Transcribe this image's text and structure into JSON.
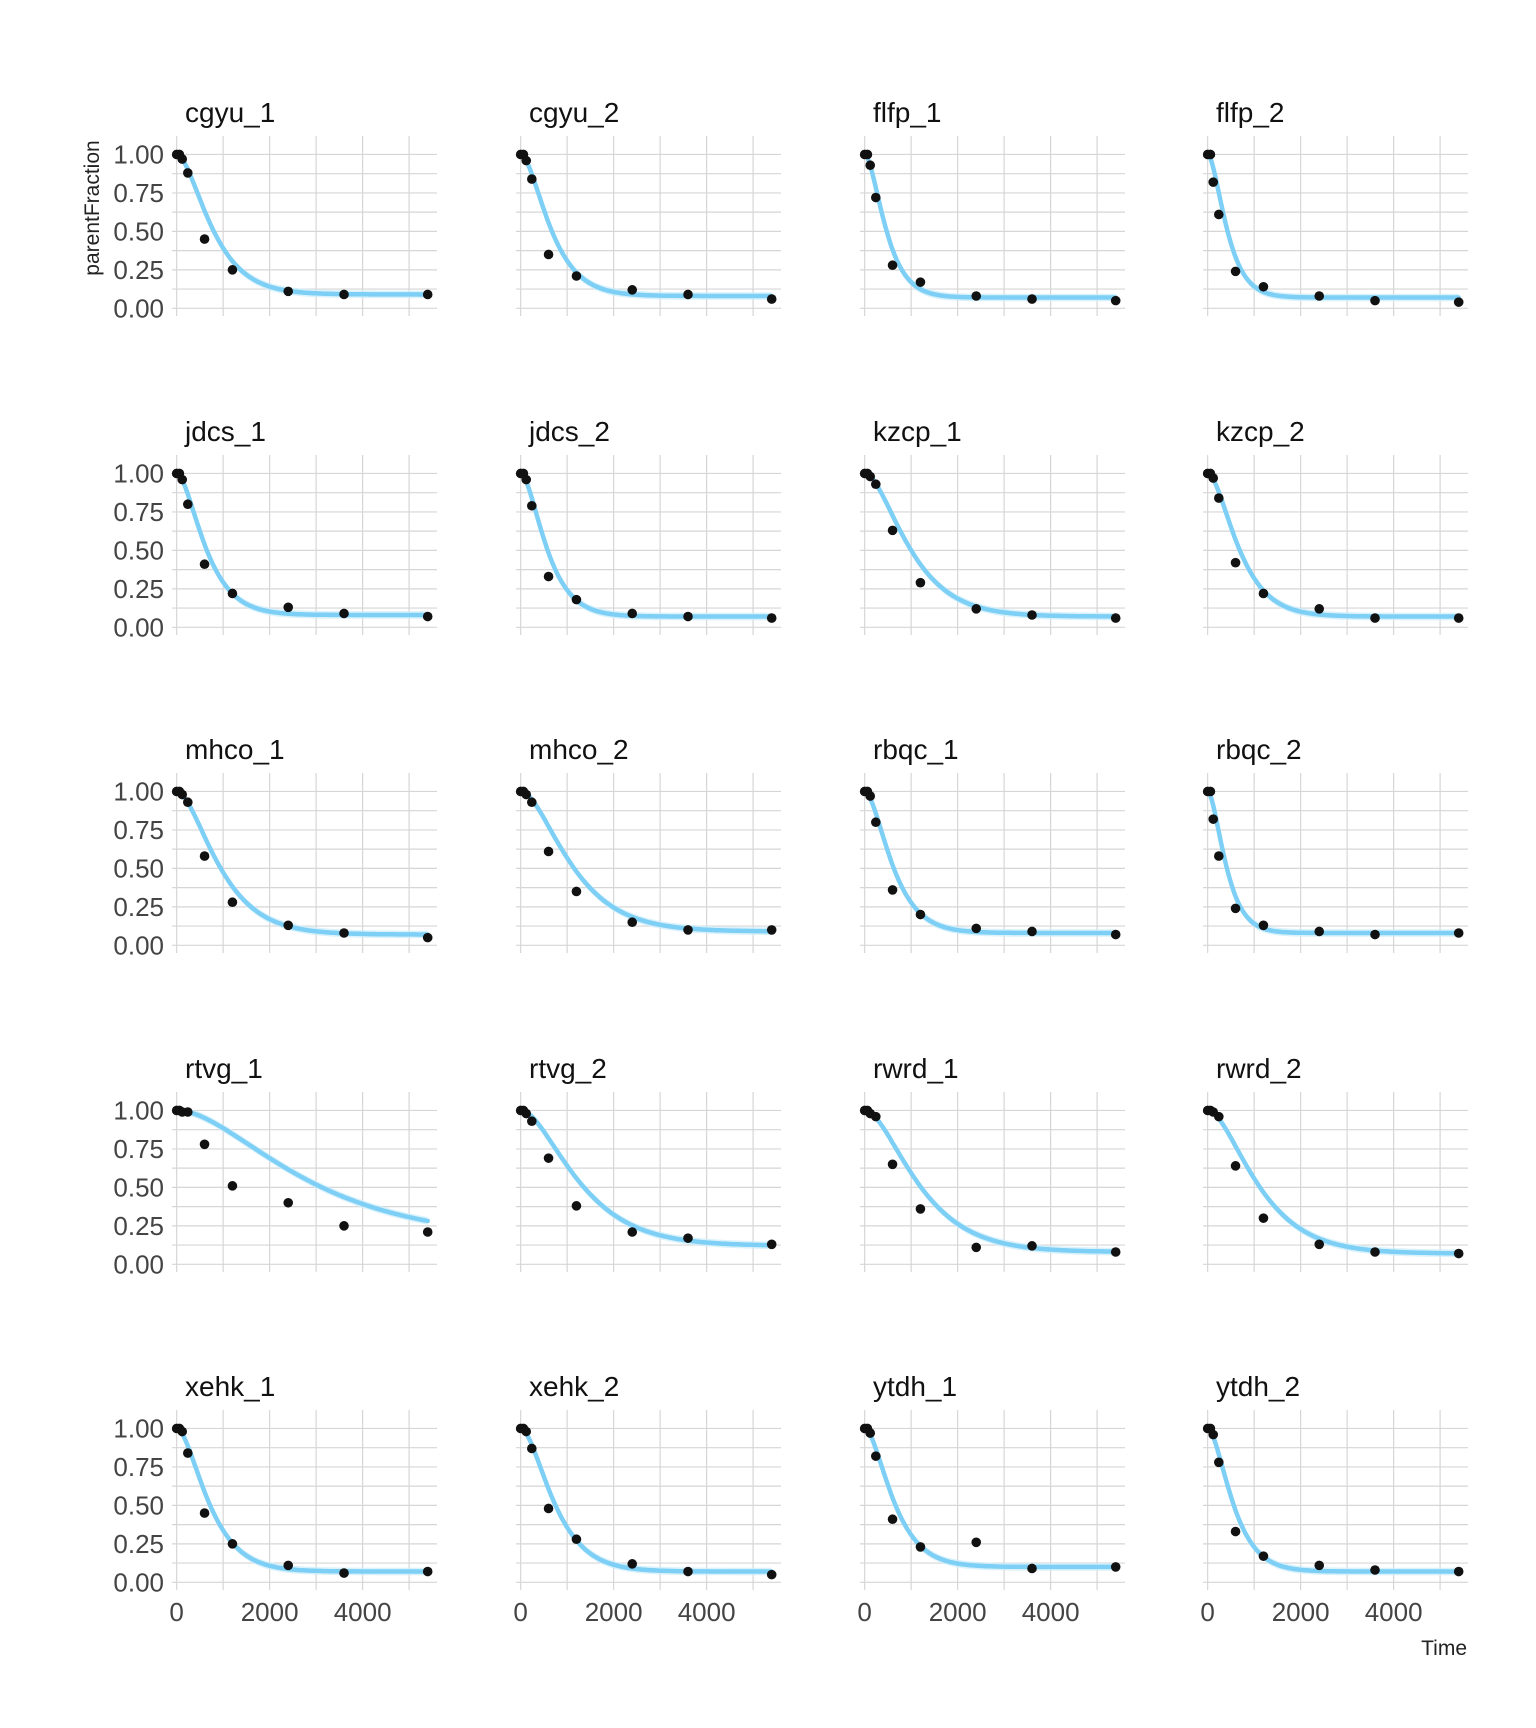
{
  "chart_data": {
    "type": "scatter",
    "layout": "facet grid, 5 rows x 4 columns",
    "xlabel": "Time",
    "ylabel": "parentFraction",
    "xlim": [
      -100,
      5600
    ],
    "ylim": [
      -0.05,
      1.12
    ],
    "xticks": [
      "0",
      "2000",
      "4000"
    ],
    "yticks": [
      "0.00",
      "0.25",
      "0.50",
      "0.75",
      "1.00"
    ],
    "grid": true,
    "colors": {
      "points": "#111111",
      "fit_line": "#7dcff5",
      "fit_band": "#cdeefb",
      "grid": "#d6d6d6"
    },
    "panels": [
      {
        "title": "cgyu_1",
        "x": [
          0,
          60,
          120,
          240,
          600,
          1200,
          2400,
          3600,
          5400
        ],
        "y": [
          1.0,
          1.0,
          0.97,
          0.88,
          0.45,
          0.25,
          0.11,
          0.09,
          0.09
        ],
        "fit_k": 0.0023,
        "fit_plateau": 0.09
      },
      {
        "title": "cgyu_2",
        "x": [
          0,
          60,
          120,
          240,
          600,
          1200,
          2400,
          3600,
          5400
        ],
        "y": [
          1.0,
          1.0,
          0.96,
          0.84,
          0.35,
          0.21,
          0.12,
          0.09,
          0.06
        ],
        "fit_k": 0.0027,
        "fit_plateau": 0.08
      },
      {
        "title": "flfp_1",
        "x": [
          0,
          60,
          120,
          240,
          600,
          1200,
          2400,
          3600,
          5400
        ],
        "y": [
          1.0,
          1.0,
          0.93,
          0.72,
          0.28,
          0.17,
          0.08,
          0.06,
          0.05
        ],
        "fit_k": 0.0038,
        "fit_plateau": 0.07
      },
      {
        "title": "flfp_2",
        "x": [
          0,
          60,
          120,
          240,
          600,
          1200,
          2400,
          3600,
          5400
        ],
        "y": [
          1.0,
          1.0,
          0.82,
          0.61,
          0.24,
          0.14,
          0.08,
          0.05,
          0.04
        ],
        "fit_k": 0.0042,
        "fit_plateau": 0.07
      },
      {
        "title": "jdcs_1",
        "x": [
          0,
          60,
          120,
          240,
          600,
          1200,
          2400,
          3600,
          5400
        ],
        "y": [
          1.0,
          1.0,
          0.96,
          0.8,
          0.41,
          0.22,
          0.13,
          0.09,
          0.07
        ],
        "fit_k": 0.0028,
        "fit_plateau": 0.08
      },
      {
        "title": "jdcs_2",
        "x": [
          0,
          60,
          120,
          240,
          600,
          1200,
          2400,
          3600,
          5400
        ],
        "y": [
          1.0,
          1.0,
          0.96,
          0.79,
          0.33,
          0.18,
          0.09,
          0.07,
          0.06
        ],
        "fit_k": 0.0031,
        "fit_plateau": 0.07
      },
      {
        "title": "kzcp_1",
        "x": [
          0,
          60,
          120,
          240,
          600,
          1200,
          2400,
          3600,
          5400
        ],
        "y": [
          1.0,
          1.0,
          0.98,
          0.93,
          0.63,
          0.29,
          0.12,
          0.08,
          0.06
        ],
        "fit_k": 0.0018,
        "fit_plateau": 0.07
      },
      {
        "title": "kzcp_2",
        "x": [
          0,
          60,
          120,
          240,
          600,
          1200,
          2400,
          3600,
          5400
        ],
        "y": [
          1.0,
          1.0,
          0.97,
          0.84,
          0.42,
          0.22,
          0.12,
          0.06,
          0.06
        ],
        "fit_k": 0.0026,
        "fit_plateau": 0.07
      },
      {
        "title": "mhco_1",
        "x": [
          0,
          60,
          120,
          240,
          600,
          1200,
          2400,
          3600,
          5400
        ],
        "y": [
          1.0,
          1.0,
          0.98,
          0.93,
          0.58,
          0.28,
          0.13,
          0.08,
          0.05
        ],
        "fit_k": 0.0019,
        "fit_plateau": 0.07
      },
      {
        "title": "mhco_2",
        "x": [
          0,
          60,
          120,
          240,
          600,
          1200,
          2400,
          3600,
          5400
        ],
        "y": [
          1.0,
          1.0,
          0.98,
          0.93,
          0.61,
          0.35,
          0.15,
          0.1,
          0.1
        ],
        "fit_k": 0.0016,
        "fit_plateau": 0.09
      },
      {
        "title": "rbqc_1",
        "x": [
          0,
          60,
          120,
          240,
          600,
          1200,
          2400,
          3600,
          5400
        ],
        "y": [
          1.0,
          1.0,
          0.97,
          0.8,
          0.36,
          0.2,
          0.11,
          0.09,
          0.07
        ],
        "fit_k": 0.0029,
        "fit_plateau": 0.08
      },
      {
        "title": "rbqc_2",
        "x": [
          0,
          60,
          120,
          240,
          600,
          1200,
          2400,
          3600,
          5400
        ],
        "y": [
          1.0,
          1.0,
          0.82,
          0.58,
          0.24,
          0.13,
          0.09,
          0.07,
          0.08
        ],
        "fit_k": 0.0044,
        "fit_plateau": 0.08
      },
      {
        "title": "rtvg_1",
        "x": [
          0,
          60,
          120,
          240,
          600,
          1200,
          2400,
          3600,
          5400
        ],
        "y": [
          1.0,
          1.0,
          0.99,
          0.99,
          0.78,
          0.51,
          0.4,
          0.25,
          0.21
        ],
        "fit_k": 0.00065,
        "fit_plateau": 0.17
      },
      {
        "title": "rtvg_2",
        "x": [
          0,
          60,
          120,
          240,
          600,
          1200,
          2400,
          3600,
          5400
        ],
        "y": [
          1.0,
          1.0,
          0.98,
          0.93,
          0.69,
          0.38,
          0.21,
          0.17,
          0.13
        ],
        "fit_k": 0.0014,
        "fit_plateau": 0.12
      },
      {
        "title": "rwrd_1",
        "x": [
          0,
          60,
          120,
          240,
          600,
          1200,
          2400,
          3600,
          5400
        ],
        "y": [
          1.0,
          1.0,
          0.98,
          0.96,
          0.65,
          0.36,
          0.11,
          0.12,
          0.08
        ],
        "fit_k": 0.0015,
        "fit_plateau": 0.08
      },
      {
        "title": "rwrd_2",
        "x": [
          0,
          60,
          120,
          240,
          600,
          1200,
          2400,
          3600,
          5400
        ],
        "y": [
          1.0,
          1.0,
          0.99,
          0.96,
          0.64,
          0.3,
          0.13,
          0.08,
          0.07
        ],
        "fit_k": 0.0016,
        "fit_plateau": 0.07
      },
      {
        "title": "xehk_1",
        "x": [
          0,
          60,
          120,
          240,
          600,
          1200,
          2400,
          3600,
          5400
        ],
        "y": [
          1.0,
          1.0,
          0.98,
          0.84,
          0.45,
          0.25,
          0.11,
          0.06,
          0.07
        ],
        "fit_k": 0.0025,
        "fit_plateau": 0.07
      },
      {
        "title": "xehk_2",
        "x": [
          0,
          60,
          120,
          240,
          600,
          1200,
          2400,
          3600,
          5400
        ],
        "y": [
          1.0,
          1.0,
          0.98,
          0.87,
          0.48,
          0.28,
          0.12,
          0.07,
          0.05
        ],
        "fit_k": 0.0024,
        "fit_plateau": 0.07
      },
      {
        "title": "ytdh_1",
        "x": [
          0,
          60,
          120,
          240,
          600,
          1200,
          2400,
          3600,
          5400
        ],
        "y": [
          1.0,
          1.0,
          0.97,
          0.82,
          0.41,
          0.23,
          0.26,
          0.09,
          0.1
        ],
        "fit_k": 0.0028,
        "fit_plateau": 0.1
      },
      {
        "title": "ytdh_2",
        "x": [
          0,
          60,
          120,
          240,
          600,
          1200,
          2400,
          3600,
          5400
        ],
        "y": [
          1.0,
          1.0,
          0.96,
          0.78,
          0.33,
          0.17,
          0.11,
          0.08,
          0.07
        ],
        "fit_k": 0.0032,
        "fit_plateau": 0.07
      }
    ]
  }
}
